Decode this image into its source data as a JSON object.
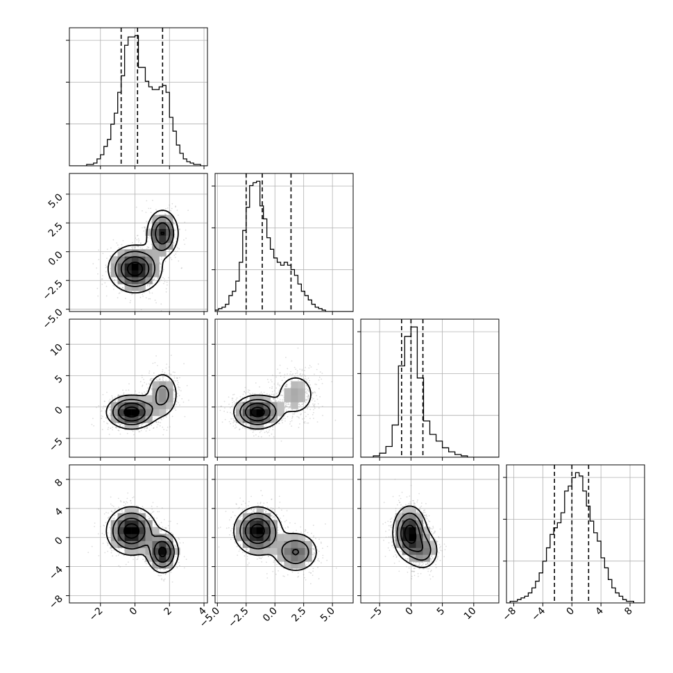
{
  "chart_data": {
    "type": "corner",
    "grid": true,
    "point_color": "#9a9a9a",
    "line_color": "#000000",
    "parameters": [
      {
        "index": 0,
        "range": [
          -3.8,
          4.2
        ],
        "ticks": [
          -2,
          0,
          2,
          4
        ],
        "tick_labels": [
          "−2",
          "0",
          "2",
          "4"
        ],
        "quantiles": [
          -0.8,
          0.15,
          1.6
        ]
      },
      {
        "index": 1,
        "range": [
          -5.2,
          6.8
        ],
        "ticks": [
          -5.0,
          -2.5,
          0.0,
          2.5,
          5.0
        ],
        "tick_labels": [
          "−5.0",
          "−2.5",
          "0.0",
          "2.5",
          "5.0"
        ],
        "quantiles": [
          -2.5,
          -1.1,
          1.4
        ]
      },
      {
        "index": 2,
        "range": [
          -8,
          14
        ],
        "ticks": [
          -5,
          0,
          5,
          10
        ],
        "tick_labels": [
          "−5",
          "0",
          "5",
          "10"
        ],
        "quantiles": [
          -1.5,
          0.0,
          1.9
        ]
      },
      {
        "index": 3,
        "range": [
          -9,
          10
        ],
        "ticks": [
          -8,
          -4,
          0,
          4,
          8
        ],
        "tick_labels": [
          "−8",
          "−4",
          "0",
          "4",
          "8"
        ],
        "quantiles": [
          -2.4,
          0.0,
          2.3
        ]
      }
    ],
    "histograms": [
      {
        "param": 0,
        "bins": [
          -3.8,
          -3.6,
          -3.4,
          -3.2,
          -3.0,
          -2.8,
          -2.6,
          -2.4,
          -2.2,
          -2.0,
          -1.8,
          -1.6,
          -1.4,
          -1.2,
          -1.0,
          -0.8,
          -0.6,
          -0.4,
          -0.2,
          0.0,
          0.2,
          0.4,
          0.6,
          0.8,
          1.0,
          1.2,
          1.4,
          1.6,
          1.8,
          2.0,
          2.2,
          2.4,
          2.6,
          2.8,
          3.0,
          3.2,
          3.4,
          3.6,
          3.8,
          4.0,
          4.2
        ],
        "values": [
          0,
          0,
          0,
          0,
          0,
          1,
          1,
          2,
          5,
          8,
          14,
          19,
          30,
          38,
          53,
          65,
          87,
          93,
          93,
          94,
          71,
          71,
          61,
          57,
          55,
          55,
          57,
          58,
          53,
          35,
          25,
          15,
          9,
          5,
          3,
          2,
          1,
          1,
          0,
          0
        ]
      },
      {
        "param": 1,
        "bins": [
          -5.2,
          -4.9,
          -4.6,
          -4.3,
          -4.0,
          -3.7,
          -3.4,
          -3.1,
          -2.8,
          -2.5,
          -2.2,
          -1.9,
          -1.6,
          -1.3,
          -1.0,
          -0.7,
          -0.4,
          -0.1,
          0.2,
          0.5,
          0.8,
          1.1,
          1.4,
          1.7,
          2.0,
          2.3,
          2.6,
          2.9,
          3.2,
          3.5,
          3.8,
          4.1,
          4.4,
          4.7,
          5.0,
          5.3,
          5.6,
          5.9,
          6.2,
          6.5,
          6.8
        ],
        "values": [
          1,
          2,
          3,
          5,
          11,
          14,
          21,
          34,
          56,
          72,
          87,
          89,
          90,
          73,
          64,
          51,
          43,
          37,
          34,
          32,
          34,
          32,
          29,
          25,
          19,
          14,
          11,
          8,
          5,
          3,
          2,
          1,
          0,
          0,
          0,
          0,
          0,
          0,
          0,
          0
        ]
      },
      {
        "param": 2,
        "bins": [
          -8.0,
          -7.0,
          -6.0,
          -5.0,
          -4.0,
          -3.0,
          -2.0,
          -1.0,
          0.0,
          1.0,
          2.0,
          3.0,
          4.0,
          5.0,
          6.0,
          7.0,
          8.0,
          9.0,
          10.0,
          11.0,
          12.0,
          13.0,
          14.0
        ],
        "values": [
          0,
          0,
          1,
          3,
          8,
          24,
          68,
          90,
          97,
          59,
          27,
          17,
          12,
          7,
          4,
          2,
          1,
          0,
          0,
          0,
          0,
          0
        ]
      },
      {
        "param": 3,
        "bins": [
          -9.0,
          -8.5,
          -8.0,
          -7.5,
          -7.0,
          -6.5,
          -6.0,
          -5.5,
          -5.0,
          -4.5,
          -4.0,
          -3.5,
          -3.0,
          -2.5,
          -2.0,
          -1.5,
          -1.0,
          -0.5,
          0.0,
          0.5,
          1.0,
          1.5,
          2.0,
          2.5,
          3.0,
          3.5,
          4.0,
          4.5,
          5.0,
          5.5,
          6.0,
          6.5,
          7.0,
          7.5,
          8.0,
          8.5,
          9.0,
          9.5,
          10.0
        ],
        "values": [
          0,
          1,
          1,
          2,
          3,
          4,
          6,
          9,
          13,
          18,
          25,
          33,
          41,
          45,
          48,
          54,
          67,
          70,
          75,
          78,
          76,
          67,
          58,
          49,
          42,
          37,
          27,
          21,
          14,
          9,
          6,
          4,
          2,
          1,
          1,
          0,
          0,
          0
        ]
      }
    ],
    "scatter_panels": [
      {
        "x_param": 0,
        "y_param": 1,
        "modes": [
          {
            "center": [
              0.0,
              -1.5
            ],
            "spread": [
              0.75,
              1.0
            ],
            "weight": 0.66
          },
          {
            "center": [
              1.6,
              1.6
            ],
            "spread": [
              0.45,
              1.0
            ],
            "weight": 0.34
          }
        ]
      },
      {
        "x_param": 0,
        "y_param": 2,
        "modes": [
          {
            "center": [
              -0.2,
              -0.8
            ],
            "spread": [
              0.7,
              1.3
            ],
            "weight": 0.7
          },
          {
            "center": [
              1.6,
              2.0
            ],
            "spread": [
              0.5,
              2.0
            ],
            "weight": 0.3
          }
        ]
      },
      {
        "x_param": 1,
        "y_param": 2,
        "modes": [
          {
            "center": [
              -1.5,
              -0.8
            ],
            "spread": [
              1.0,
              1.3
            ],
            "weight": 0.7
          },
          {
            "center": [
              1.8,
              2.0
            ],
            "spread": [
              1.0,
              2.0
            ],
            "weight": 0.3
          }
        ]
      },
      {
        "x_param": 0,
        "y_param": 3,
        "modes": [
          {
            "center": [
              -0.2,
              0.9
            ],
            "spread": [
              0.7,
              1.6
            ],
            "weight": 0.66
          },
          {
            "center": [
              1.6,
              -2.0
            ],
            "spread": [
              0.45,
              1.4
            ],
            "weight": 0.34
          }
        ]
      },
      {
        "x_param": 1,
        "y_param": 3,
        "modes": [
          {
            "center": [
              -1.5,
              0.9
            ],
            "spread": [
              1.0,
              1.6
            ],
            "weight": 0.66
          },
          {
            "center": [
              1.8,
              -2.0
            ],
            "spread": [
              1.0,
              1.4
            ],
            "weight": 0.34
          }
        ]
      },
      {
        "x_param": 2,
        "y_param": 3,
        "modes": [
          {
            "center": [
              -0.2,
              0.6
            ],
            "spread": [
              1.3,
              1.8
            ],
            "weight": 0.75
          },
          {
            "center": [
              2.0,
              -1.8
            ],
            "spread": [
              1.3,
              1.4
            ],
            "weight": 0.25
          }
        ]
      }
    ]
  }
}
